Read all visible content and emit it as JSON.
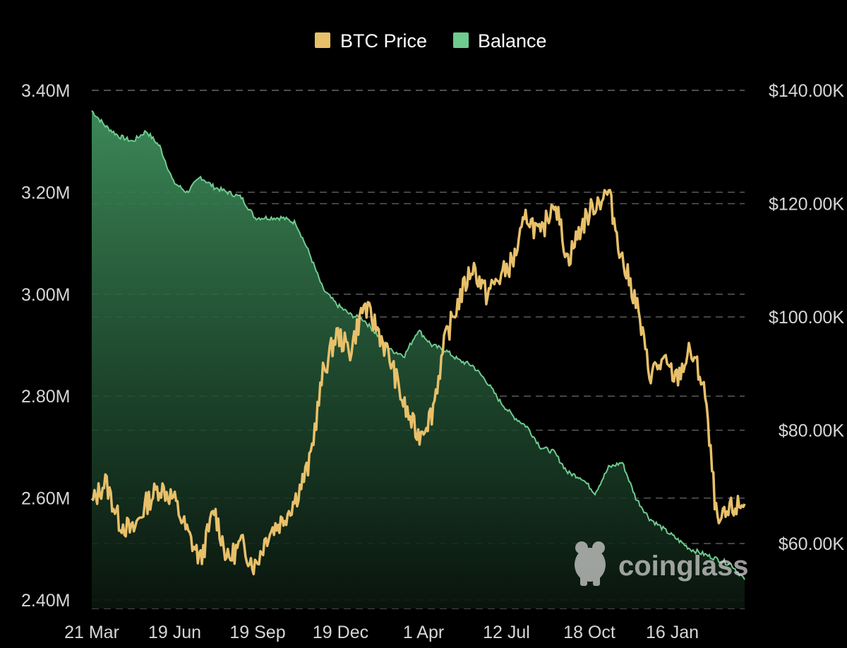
{
  "chart_data": {
    "type": "area",
    "legend": [
      {
        "name": "BTC Price",
        "color": "#E8C06A"
      },
      {
        "name": "Balance",
        "color": "#6FCB8E"
      }
    ],
    "legend_position": "top-center",
    "grid": true,
    "x_ticks": [
      "21 Mar",
      "19 Jun",
      "19 Sep",
      "19 Dec",
      "1 Apr",
      "12 Jul",
      "18 Oct",
      "16 Jan"
    ],
    "y_left": {
      "label": "",
      "ticks": [
        "3.40M",
        "3.20M",
        "3.00M",
        "2.80M",
        "2.60M",
        "2.40M"
      ],
      "tick_values": [
        3400000,
        3200000,
        3000000,
        2800000,
        2600000,
        2400000
      ],
      "range": [
        2400000,
        3400000
      ]
    },
    "y_right": {
      "label": "",
      "ticks": [
        "$140.00K",
        "$120.00K",
        "$100.00K",
        "$80.00K",
        "$60.00K"
      ],
      "tick_values": [
        140000,
        120000,
        100000,
        80000,
        60000
      ],
      "range": [
        49000,
        140000
      ]
    },
    "series": [
      {
        "name": "Balance",
        "axis": "left",
        "color": "#6FCB8E",
        "x": [
          "21 Mar",
          "5 Apr",
          "20 Apr",
          "5 May",
          "20 May",
          "1 Jun",
          "19 Jun",
          "5 Jul",
          "20 Jul",
          "5 Aug",
          "20 Aug",
          "1 Sep",
          "19 Sep",
          "5 Oct",
          "20 Oct",
          "5 Nov",
          "20 Nov",
          "5 Dec",
          "19 Dec",
          "1 Jan",
          "15 Jan",
          "1 Feb",
          "15 Feb",
          "1 Mar",
          "15 Mar",
          "1 Apr",
          "15 Apr",
          "1 May",
          "15 May",
          "1 Jun",
          "15 Jun",
          "1 Jul",
          "12 Jul",
          "1 Aug",
          "15 Aug",
          "1 Sep",
          "15 Sep",
          "1 Oct",
          "10 Oct",
          "18 Oct",
          "1 Nov",
          "15 Nov",
          "1 Dec",
          "15 Dec",
          "1 Jan",
          "16 Jan",
          "1 Feb",
          "15 Feb",
          "1 Mar"
        ],
        "values": [
          3360000,
          3330000,
          3310000,
          3300000,
          3320000,
          3290000,
          3220000,
          3200000,
          3230000,
          3210000,
          3200000,
          3190000,
          3150000,
          3150000,
          3150000,
          3140000,
          3080000,
          3010000,
          2980000,
          2960000,
          2950000,
          2920000,
          2890000,
          2880000,
          2930000,
          2900000,
          2890000,
          2870000,
          2860000,
          2830000,
          2790000,
          2760000,
          2740000,
          2700000,
          2690000,
          2650000,
          2640000,
          2610000,
          2660000,
          2670000,
          2600000,
          2560000,
          2540000,
          2520000,
          2500000,
          2490000,
          2480000,
          2470000,
          2440000
        ]
      },
      {
        "name": "BTC Price",
        "axis": "right",
        "color": "#E8C06A",
        "x": [
          "21 Mar",
          "5 Apr",
          "20 Apr",
          "5 May",
          "20 May",
          "1 Jun",
          "19 Jun",
          "5 Jul",
          "20 Jul",
          "5 Aug",
          "20 Aug",
          "1 Sep",
          "19 Sep",
          "5 Oct",
          "20 Oct",
          "5 Nov",
          "20 Nov",
          "5 Dec",
          "19 Dec",
          "1 Jan",
          "15 Jan",
          "1 Feb",
          "15 Feb",
          "1 Mar",
          "15 Mar",
          "1 Apr",
          "15 Apr",
          "1 May",
          "15 May",
          "1 Jun",
          "15 Jun",
          "1 Jul",
          "12 Jul",
          "1 Aug",
          "15 Aug",
          "1 Sep",
          "15 Sep",
          "1 Oct",
          "10 Oct",
          "18 Oct",
          "1 Nov",
          "15 Nov",
          "1 Dec",
          "15 Dec",
          "1 Jan",
          "16 Jan",
          "1 Feb",
          "15 Feb",
          "1 Mar"
        ],
        "values": [
          67000,
          71000,
          64000,
          62000,
          67000,
          70000,
          68000,
          62000,
          57000,
          66000,
          57000,
          60000,
          56000,
          62000,
          64000,
          68000,
          74000,
          90000,
          97000,
          94000,
          102000,
          98000,
          92000,
          84000,
          79000,
          83000,
          96000,
          103000,
          109000,
          104000,
          107000,
          110000,
          118000,
          114000,
          121000,
          110000,
          116000,
          120000,
          122000,
          110000,
          103000,
          90000,
          92000,
          89000,
          94000,
          88000,
          63000,
          66000,
          67000
        ]
      }
    ],
    "watermark": "coinglass"
  }
}
